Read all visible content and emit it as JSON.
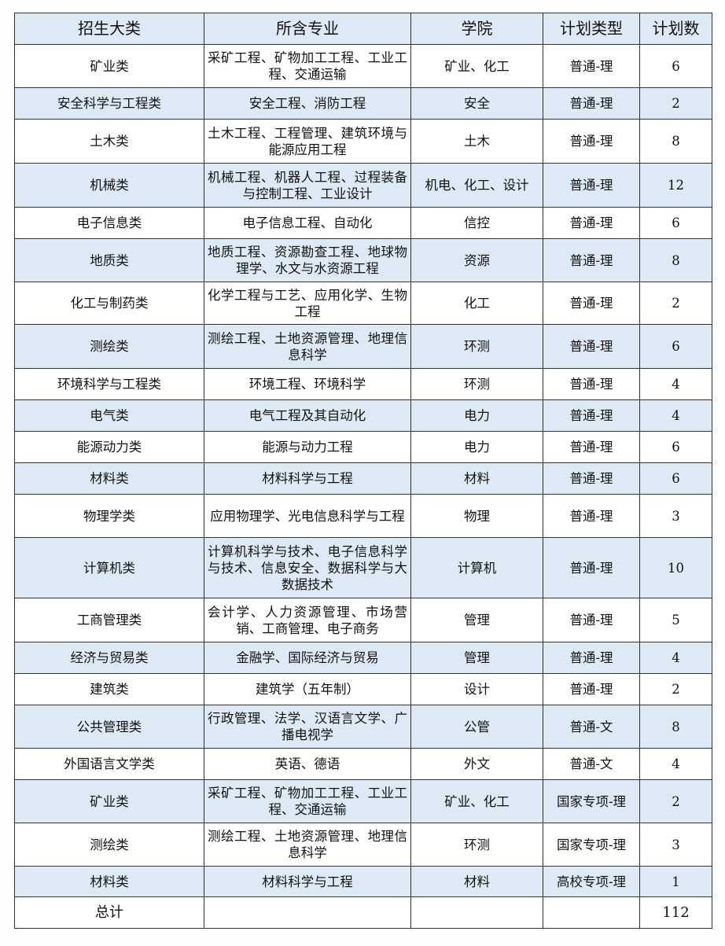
{
  "headers": [
    "招生大类",
    "所含专业",
    "学院",
    "计划类型",
    "计划数"
  ],
  "colors": {
    "shaded_row": "#dde9f5",
    "border": "#333333"
  },
  "rows": [
    [
      "矿业类",
      "采矿工程、矿物加工工程、工业工程、交通运输",
      "矿业、化工",
      "普通-理",
      "6"
    ],
    [
      "安全科学与工程类",
      "安全工程、消防工程",
      "安全",
      "普通-理",
      "2"
    ],
    [
      "土木类",
      "土木工程、工程管理、建筑环境与能源应用工程",
      "土木",
      "普通-理",
      "8"
    ],
    [
      "机械类",
      "机械工程、机器人工程、过程装备与控制工程、工业设计",
      "机电、化工、设计",
      "普通-理",
      "12"
    ],
    [
      "电子信息类",
      "电子信息工程、自动化",
      "信控",
      "普通-理",
      "6"
    ],
    [
      "地质类",
      "地质工程、资源勘查工程、地球物理学、水文与水资源工程",
      "资源",
      "普通-理",
      "8"
    ],
    [
      "化工与制药类",
      "化学工程与工艺、应用化学、生物工程",
      "化工",
      "普通-理",
      "2"
    ],
    [
      "测绘类",
      "测绘工程、土地资源管理、地理信息科学",
      "环测",
      "普通-理",
      "6"
    ],
    [
      "环境科学与工程类",
      "环境工程、环境科学",
      "环测",
      "普通-理",
      "4"
    ],
    [
      "电气类",
      "电气工程及其自动化",
      "电力",
      "普通-理",
      "4"
    ],
    [
      "能源动力类",
      "能源与动力工程",
      "电力",
      "普通-理",
      "6"
    ],
    [
      "材料类",
      "材料科学与工程",
      "材料",
      "普通-理",
      "6"
    ],
    [
      "物理学类",
      "应用物理学、光电信息科学与工程",
      "物理",
      "普通-理",
      "3"
    ],
    [
      "计算机类",
      "计算机科学与技术、电子信息科学与技术、信息安全、数据科学与大数据技术",
      "计算机",
      "普通-理",
      "10"
    ],
    [
      "工商管理类",
      "会计学、人力资源管理、市场营销、工商管理、电子商务",
      "管理",
      "普通-理",
      "5"
    ],
    [
      "经济与贸易类",
      "金融学、国际经济与贸易",
      "管理",
      "普通-理",
      "4"
    ],
    [
      "建筑类",
      "建筑学（五年制）",
      "设计",
      "普通-理",
      "2"
    ],
    [
      "公共管理类",
      "行政管理、法学、汉语言文学、广播电视学",
      "公管",
      "普通-文",
      "8"
    ],
    [
      "外国语言文学类",
      "英语、德语",
      "外文",
      "普通-文",
      "4"
    ],
    [
      "矿业类",
      "采矿工程、矿物加工工程、工业工程、交通运输",
      "矿业、化工",
      "国家专项-理",
      "2"
    ],
    [
      "测绘类",
      "测绘工程、土地资源管理、地理信息科学",
      "环测",
      "国家专项-理",
      "3"
    ],
    [
      "材料类",
      "材料科学与工程",
      "材料",
      "高校专项-理",
      "1"
    ]
  ],
  "total": {
    "label": "总计",
    "value": "112"
  }
}
